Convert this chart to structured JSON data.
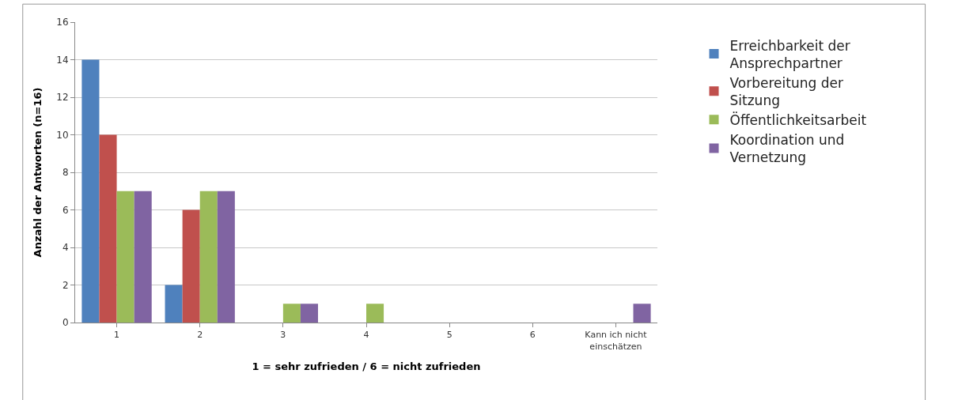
{
  "chart_data": {
    "type": "bar",
    "xlabel": "1 = sehr zufrieden / 6 = nicht zufrieden",
    "ylabel": "Anzahl der Antworten (n=16)",
    "categories": [
      "1",
      "2",
      "3",
      "4",
      "5",
      "6",
      "Kann ich nicht einschätzen"
    ],
    "series": [
      {
        "name": "Erreichbarkeit der Ansprechpartner",
        "color": "#4f81bd",
        "values": [
          14,
          2,
          0,
          0,
          0,
          0,
          0
        ]
      },
      {
        "name": "Vorbereitung der Sitzung",
        "color": "#c0504d",
        "values": [
          10,
          6,
          0,
          0,
          0,
          0,
          0
        ]
      },
      {
        "name": "Öffentlichkeitsarbeit",
        "color": "#9bbb59",
        "values": [
          7,
          7,
          1,
          1,
          0,
          0,
          0
        ]
      },
      {
        "name": "Koordination und Vernetzung",
        "color": "#8064a2",
        "values": [
          7,
          7,
          1,
          0,
          0,
          0,
          1
        ]
      }
    ],
    "ylim": [
      0,
      16
    ],
    "yticks": [
      0,
      2,
      4,
      6,
      8,
      10,
      12,
      14,
      16
    ],
    "grid": "y",
    "legend": "right"
  }
}
